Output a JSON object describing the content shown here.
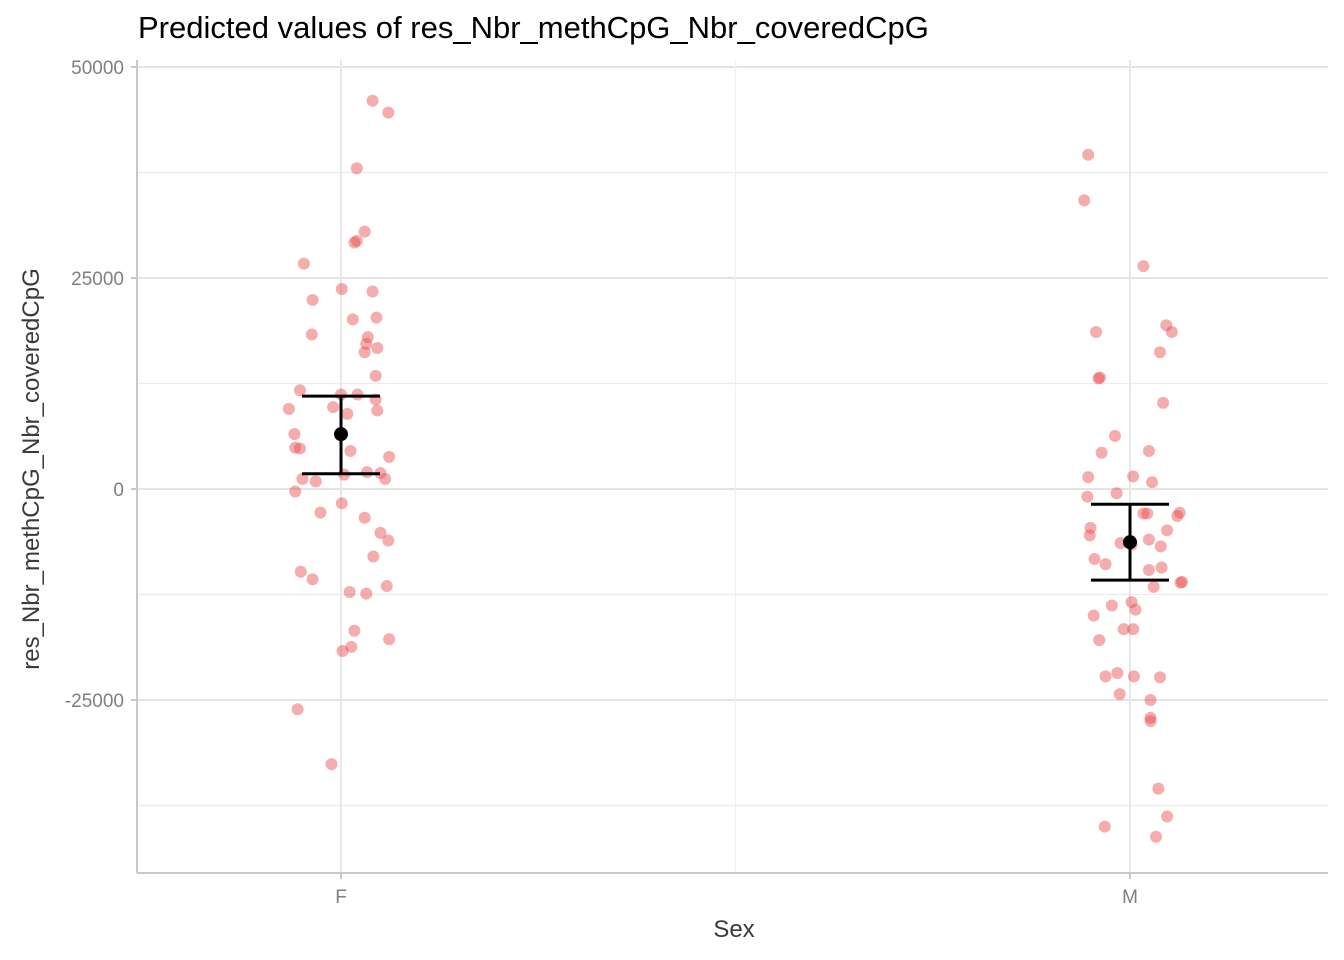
{
  "chart_data": {
    "type": "scatter",
    "title": "Predicted values of res_Nbr_methCpG_Nbr_coveredCpG",
    "xlabel": "Sex",
    "ylabel": "res_Nbr_methCpG_Nbr_coveredCpG",
    "categories": [
      "F",
      "M"
    ],
    "ylim": [
      -45000,
      50000
    ],
    "yticks": [
      -25000,
      0,
      25000,
      50000
    ],
    "y_minor_gridlines": [
      -37500,
      -12500,
      12500,
      37500
    ],
    "grid": true,
    "legend": "none",
    "point_color": "#e8484a",
    "point_opacity": 0.45,
    "estimate_color": "#000000",
    "predictions": [
      {
        "category": "F",
        "estimate": 6500,
        "ci_low": 1800,
        "ci_high": 11000
      },
      {
        "category": "M",
        "estimate": -6300,
        "ci_low": -10800,
        "ci_high": -1800
      }
    ],
    "raw_points": [
      {
        "x": "F",
        "jitter": 0.04,
        "y": 46000
      },
      {
        "x": "F",
        "jitter": 0.06,
        "y": 44600
      },
      {
        "x": "F",
        "jitter": 0.02,
        "y": 38000
      },
      {
        "x": "F",
        "jitter": 0.03,
        "y": 30500
      },
      {
        "x": "F",
        "jitter": 0.02,
        "y": 29400
      },
      {
        "x": "F",
        "jitter": 0.017,
        "y": 29200
      },
      {
        "x": "F",
        "jitter": -0.047,
        "y": 26700
      },
      {
        "x": "F",
        "jitter": 0.001,
        "y": 23700
      },
      {
        "x": "F",
        "jitter": 0.04,
        "y": 23400
      },
      {
        "x": "F",
        "jitter": -0.036,
        "y": 22400
      },
      {
        "x": "F",
        "jitter": 0.045,
        "y": 20300
      },
      {
        "x": "F",
        "jitter": 0.015,
        "y": 20100
      },
      {
        "x": "F",
        "jitter": -0.037,
        "y": 18300
      },
      {
        "x": "F",
        "jitter": 0.034,
        "y": 18000
      },
      {
        "x": "F",
        "jitter": 0.032,
        "y": 17200
      },
      {
        "x": "F",
        "jitter": 0.046,
        "y": 16700
      },
      {
        "x": "F",
        "jitter": 0.03,
        "y": 16200
      },
      {
        "x": "F",
        "jitter": 0.044,
        "y": 13400
      },
      {
        "x": "F",
        "jitter": -0.052,
        "y": 11700
      },
      {
        "x": "F",
        "jitter": 0.0,
        "y": 11200
      },
      {
        "x": "F",
        "jitter": 0.021,
        "y": 11200
      },
      {
        "x": "F",
        "jitter": 0.044,
        "y": 10600
      },
      {
        "x": "F",
        "jitter": -0.01,
        "y": 9700
      },
      {
        "x": "F",
        "jitter": -0.066,
        "y": 9500
      },
      {
        "x": "F",
        "jitter": 0.046,
        "y": 9300
      },
      {
        "x": "F",
        "jitter": 0.008,
        "y": 8900
      },
      {
        "x": "F",
        "jitter": -0.059,
        "y": 6500
      },
      {
        "x": "F",
        "jitter": -0.058,
        "y": 4900
      },
      {
        "x": "F",
        "jitter": -0.052,
        "y": 4800
      },
      {
        "x": "F",
        "jitter": 0.012,
        "y": 4500
      },
      {
        "x": "F",
        "jitter": 0.061,
        "y": 3800
      },
      {
        "x": "F",
        "jitter": 0.033,
        "y": 2000
      },
      {
        "x": "F",
        "jitter": 0.05,
        "y": 1900
      },
      {
        "x": "F",
        "jitter": 0.004,
        "y": 1700
      },
      {
        "x": "F",
        "jitter": -0.049,
        "y": 1200
      },
      {
        "x": "F",
        "jitter": 0.056,
        "y": 1200
      },
      {
        "x": "F",
        "jitter": -0.032,
        "y": 900
      },
      {
        "x": "F",
        "jitter": -0.058,
        "y": -300
      },
      {
        "x": "F",
        "jitter": 0.001,
        "y": -1700
      },
      {
        "x": "F",
        "jitter": -0.026,
        "y": -2800
      },
      {
        "x": "F",
        "jitter": 0.03,
        "y": -3400
      },
      {
        "x": "F",
        "jitter": 0.05,
        "y": -5200
      },
      {
        "x": "F",
        "jitter": 0.06,
        "y": -6100
      },
      {
        "x": "F",
        "jitter": 0.041,
        "y": -8000
      },
      {
        "x": "F",
        "jitter": -0.051,
        "y": -9800
      },
      {
        "x": "F",
        "jitter": -0.036,
        "y": -10700
      },
      {
        "x": "F",
        "jitter": 0.058,
        "y": -11500
      },
      {
        "x": "F",
        "jitter": 0.011,
        "y": -12200
      },
      {
        "x": "F",
        "jitter": 0.032,
        "y": -12400
      },
      {
        "x": "F",
        "jitter": 0.017,
        "y": -16800
      },
      {
        "x": "F",
        "jitter": 0.061,
        "y": -17800
      },
      {
        "x": "F",
        "jitter": 0.013,
        "y": -18700
      },
      {
        "x": "F",
        "jitter": 0.002,
        "y": -19200
      },
      {
        "x": "F",
        "jitter": -0.055,
        "y": -26100
      },
      {
        "x": "F",
        "jitter": -0.012,
        "y": -32600
      },
      {
        "x": "M",
        "jitter": -0.053,
        "y": 39600
      },
      {
        "x": "M",
        "jitter": -0.058,
        "y": 34200
      },
      {
        "x": "M",
        "jitter": 0.017,
        "y": 26400
      },
      {
        "x": "M",
        "jitter": 0.046,
        "y": 19400
      },
      {
        "x": "M",
        "jitter": 0.053,
        "y": 18600
      },
      {
        "x": "M",
        "jitter": -0.043,
        "y": 18600
      },
      {
        "x": "M",
        "jitter": 0.038,
        "y": 16200
      },
      {
        "x": "M",
        "jitter": -0.038,
        "y": 13200
      },
      {
        "x": "M",
        "jitter": -0.04,
        "y": 13100
      },
      {
        "x": "M",
        "jitter": 0.042,
        "y": 10200
      },
      {
        "x": "M",
        "jitter": -0.019,
        "y": 6300
      },
      {
        "x": "M",
        "jitter": 0.024,
        "y": 4500
      },
      {
        "x": "M",
        "jitter": -0.036,
        "y": 4300
      },
      {
        "x": "M",
        "jitter": -0.053,
        "y": 1400
      },
      {
        "x": "M",
        "jitter": 0.004,
        "y": 1500
      },
      {
        "x": "M",
        "jitter": 0.028,
        "y": 800
      },
      {
        "x": "M",
        "jitter": -0.017,
        "y": -500
      },
      {
        "x": "M",
        "jitter": -0.054,
        "y": -900
      },
      {
        "x": "M",
        "jitter": 0.063,
        "y": -2800
      },
      {
        "x": "M",
        "jitter": 0.017,
        "y": -2900
      },
      {
        "x": "M",
        "jitter": 0.022,
        "y": -2900
      },
      {
        "x": "M",
        "jitter": 0.06,
        "y": -3200
      },
      {
        "x": "M",
        "jitter": -0.05,
        "y": -4600
      },
      {
        "x": "M",
        "jitter": 0.047,
        "y": -4900
      },
      {
        "x": "M",
        "jitter": -0.051,
        "y": -5500
      },
      {
        "x": "M",
        "jitter": 0.024,
        "y": -6000
      },
      {
        "x": "M",
        "jitter": -0.012,
        "y": -6400
      },
      {
        "x": "M",
        "jitter": 0.002,
        "y": -6600
      },
      {
        "x": "M",
        "jitter": 0.039,
        "y": -6800
      },
      {
        "x": "M",
        "jitter": -0.045,
        "y": -8300
      },
      {
        "x": "M",
        "jitter": -0.031,
        "y": -8900
      },
      {
        "x": "M",
        "jitter": 0.04,
        "y": -9300
      },
      {
        "x": "M",
        "jitter": 0.024,
        "y": -9600
      },
      {
        "x": "M",
        "jitter": 0.066,
        "y": -11000
      },
      {
        "x": "M",
        "jitter": 0.064,
        "y": -11100
      },
      {
        "x": "M",
        "jitter": 0.03,
        "y": -11600
      },
      {
        "x": "M",
        "jitter": -0.023,
        "y": -13800
      },
      {
        "x": "M",
        "jitter": 0.002,
        "y": -13400
      },
      {
        "x": "M",
        "jitter": 0.007,
        "y": -14300
      },
      {
        "x": "M",
        "jitter": -0.046,
        "y": -15000
      },
      {
        "x": "M",
        "jitter": 0.004,
        "y": -16600
      },
      {
        "x": "M",
        "jitter": -0.008,
        "y": -16600
      },
      {
        "x": "M",
        "jitter": -0.039,
        "y": -17900
      },
      {
        "x": "M",
        "jitter": -0.016,
        "y": -21800
      },
      {
        "x": "M",
        "jitter": -0.031,
        "y": -22200
      },
      {
        "x": "M",
        "jitter": 0.005,
        "y": -22200
      },
      {
        "x": "M",
        "jitter": 0.038,
        "y": -22300
      },
      {
        "x": "M",
        "jitter": -0.013,
        "y": -24300
      },
      {
        "x": "M",
        "jitter": 0.026,
        "y": -25000
      },
      {
        "x": "M",
        "jitter": 0.026,
        "y": -27100
      },
      {
        "x": "M",
        "jitter": 0.026,
        "y": -27500
      },
      {
        "x": "M",
        "jitter": 0.036,
        "y": -35500
      },
      {
        "x": "M",
        "jitter": -0.032,
        "y": -40000
      },
      {
        "x": "M",
        "jitter": 0.047,
        "y": -38800
      },
      {
        "x": "M",
        "jitter": 0.033,
        "y": -41200
      }
    ]
  }
}
